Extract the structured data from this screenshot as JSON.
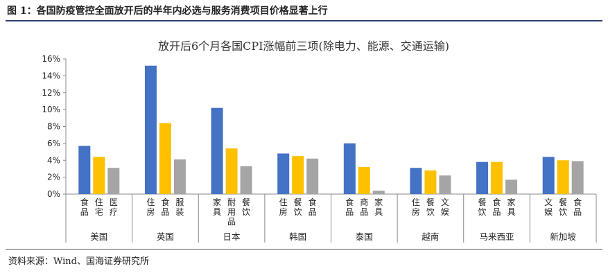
{
  "header": {
    "figure_title": "图 1：各国防疫管控全面放开后的半年内必选与服务消费项目价格显著上行"
  },
  "footer": {
    "source": "资料来源：Wind、国海证券研究所"
  },
  "colors": {
    "series": [
      "#4472c4",
      "#ffc000",
      "#a5a5a5"
    ],
    "rule": "#2d3e6e"
  },
  "chart_data": {
    "type": "bar",
    "title": "放开后6个月各国CPI涨幅前三项(除电力、能源、交通运输)",
    "xlabel": "",
    "ylabel": "",
    "ylim": [
      0,
      16
    ],
    "yticks": [
      "0%",
      "2%",
      "4%",
      "6%",
      "8%",
      "10%",
      "12%",
      "14%",
      "16%"
    ],
    "grid": false,
    "legend": "none",
    "groups": [
      {
        "country": "美国",
        "labels": [
          "食品",
          "住宅",
          "医疗"
        ],
        "values": [
          5.7,
          4.4,
          3.1
        ]
      },
      {
        "country": "英国",
        "labels": [
          "住房",
          "食品",
          "服装"
        ],
        "values": [
          15.2,
          8.4,
          4.1
        ]
      },
      {
        "country": "日本",
        "labels": [
          "家具",
          "耐用品",
          "餐饮"
        ],
        "values": [
          10.2,
          5.4,
          3.3
        ]
      },
      {
        "country": "韩国",
        "labels": [
          "住房",
          "餐饮",
          "食品"
        ],
        "values": [
          4.8,
          4.5,
          4.2
        ]
      },
      {
        "country": "泰国",
        "labels": [
          "食品",
          "商品",
          "家具"
        ],
        "values": [
          6.0,
          3.2,
          0.4
        ]
      },
      {
        "country": "越南",
        "labels": [
          "住房",
          "餐饮",
          "文娱"
        ],
        "values": [
          3.1,
          2.8,
          2.2
        ]
      },
      {
        "country": "马来西亚",
        "labels": [
          "餐饮",
          "食品",
          "家具"
        ],
        "values": [
          3.8,
          3.8,
          1.7
        ]
      },
      {
        "country": "新加坡",
        "labels": [
          "文娱",
          "餐饮",
          "食品"
        ],
        "values": [
          4.4,
          4.0,
          3.9
        ]
      }
    ]
  }
}
